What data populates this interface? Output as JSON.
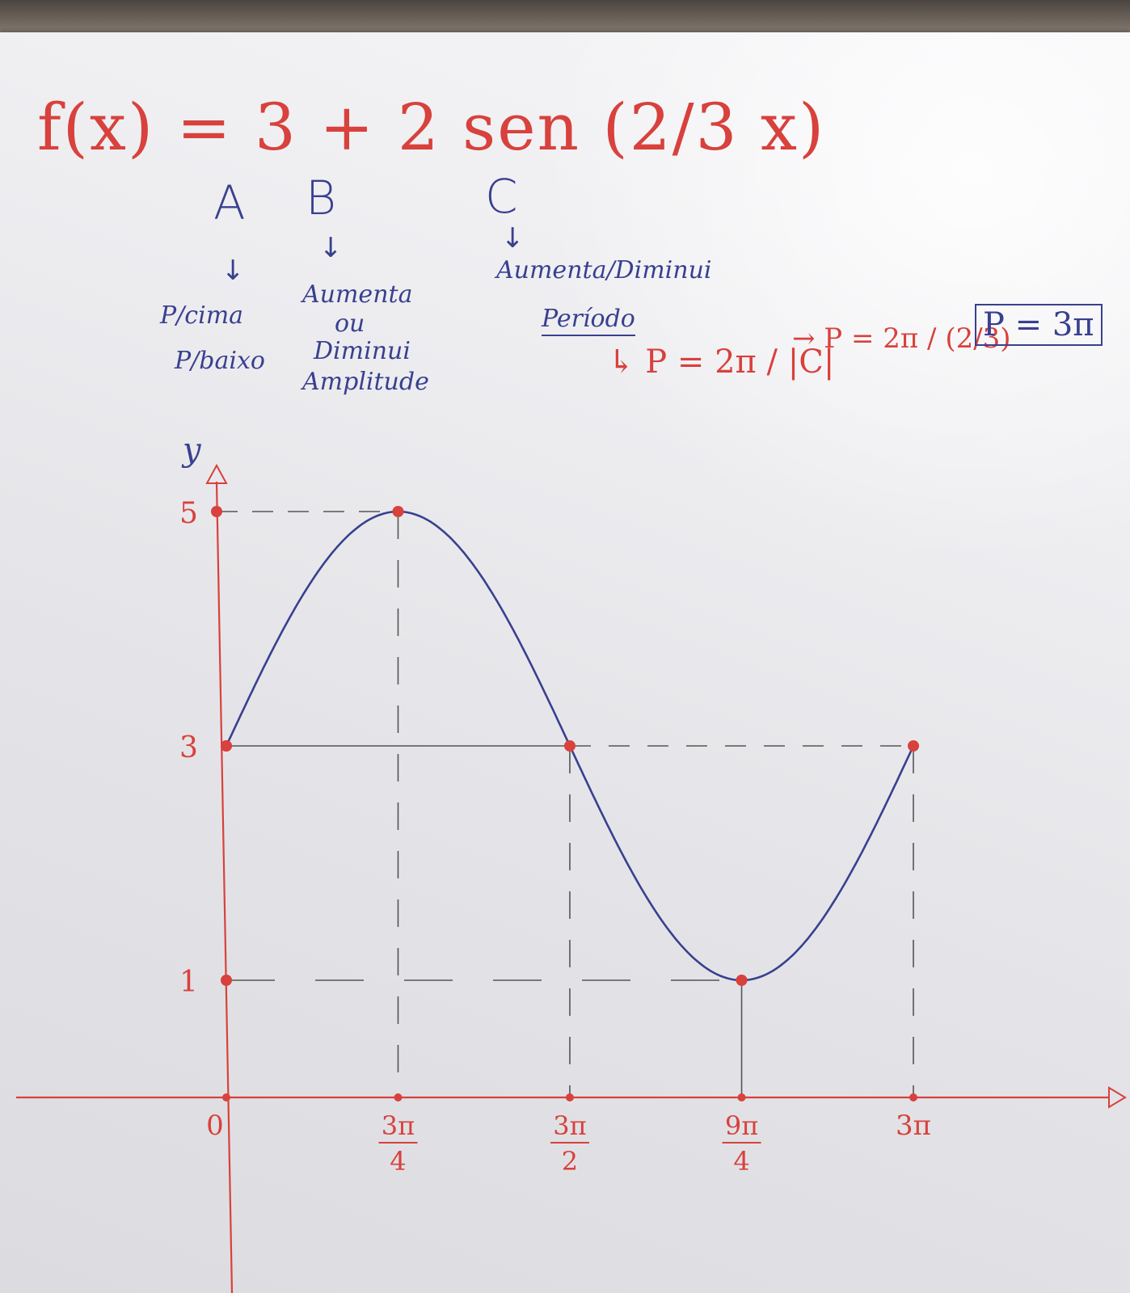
{
  "heading": {
    "formula": "f(x) = 3 + 2 sen (2/3 x)",
    "coef_a": "A",
    "coef_b": "B",
    "coef_c": "C",
    "down_arrow": "↓"
  },
  "notes": {
    "a_line1": "P/cima",
    "a_line2": "P/baixo",
    "b_line1": "Aumenta",
    "b_line2": "ou",
    "b_line3": "Diminui",
    "b_line4": "Amplitude",
    "c_line1": "Aumenta/Diminui",
    "c_line2": "Período",
    "period_formula": "↳ P = 2π / |C|",
    "period_step": "→ P = 2π / (2/3)",
    "period_result": "P = 3π"
  },
  "colors": {
    "pen_red": "#d8413c",
    "pen_blue": "#39408f",
    "pencil": "#555555"
  },
  "chart_data": {
    "type": "line",
    "title": "",
    "xlabel": "",
    "ylabel": "y",
    "function": "f(x) = 3 + 2 sen(2x/3)",
    "x_tick_labels": [
      "0",
      "3π/4",
      "3π/2",
      "9π/4",
      "3π"
    ],
    "y_tick_labels": [
      "1",
      "3",
      "5"
    ],
    "y_ticks": [
      1,
      3,
      5
    ],
    "xlim": [
      0,
      9.4248
    ],
    "ylim": [
      0,
      5
    ],
    "series": [
      {
        "x": [
          0,
          0.785,
          1.571,
          2.356,
          3.142,
          3.927,
          4.712,
          5.498,
          6.283,
          7.069,
          7.854,
          8.639,
          9.425
        ],
        "y": [
          3,
          4,
          4.732,
          5,
          4.732,
          4,
          3,
          2,
          1.268,
          1,
          1.268,
          2,
          3
        ]
      }
    ],
    "key_points": [
      {
        "x_label": "0",
        "x": 0,
        "y": 3
      },
      {
        "x_label": "3π/4",
        "x": 2.356,
        "y": 5
      },
      {
        "x_label": "3π/2",
        "x": 4.712,
        "y": 3
      },
      {
        "x_label": "9π/4",
        "x": 7.069,
        "y": 1
      },
      {
        "x_label": "3π",
        "x": 9.425,
        "y": 3
      }
    ],
    "grid": false,
    "legend": "none"
  }
}
